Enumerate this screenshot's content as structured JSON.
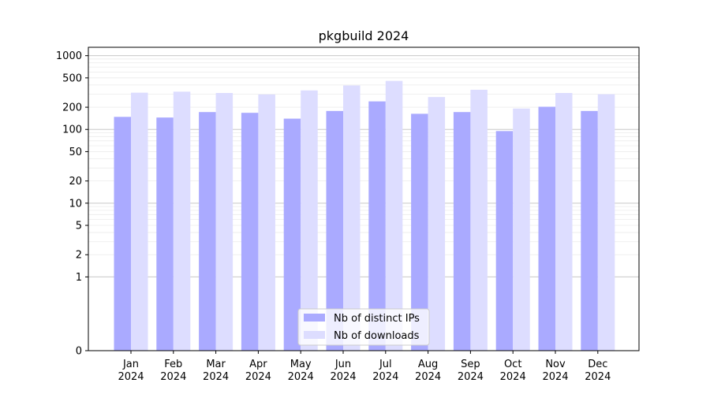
{
  "chart_data": {
    "type": "bar",
    "title": "pkgbuild 2024",
    "xlabel": "",
    "ylabel": "",
    "yscale": "symlog",
    "ylim": [
      0,
      1300
    ],
    "y_ticks": [
      0,
      1,
      2,
      5,
      10,
      20,
      50,
      100,
      200,
      500,
      1000
    ],
    "y_tick_labels": [
      "0",
      "1",
      "2",
      "5",
      "10",
      "20",
      "50",
      "100",
      "200",
      "500",
      "1000"
    ],
    "grid": true,
    "legend_position": "lower-center",
    "categories": [
      {
        "month": "Jan",
        "year": "2024"
      },
      {
        "month": "Feb",
        "year": "2024"
      },
      {
        "month": "Mar",
        "year": "2024"
      },
      {
        "month": "Apr",
        "year": "2024"
      },
      {
        "month": "May",
        "year": "2024"
      },
      {
        "month": "Jun",
        "year": "2024"
      },
      {
        "month": "Jul",
        "year": "2024"
      },
      {
        "month": "Aug",
        "year": "2024"
      },
      {
        "month": "Sep",
        "year": "2024"
      },
      {
        "month": "Oct",
        "year": "2024"
      },
      {
        "month": "Nov",
        "year": "2024"
      },
      {
        "month": "Dec",
        "year": "2024"
      }
    ],
    "series": [
      {
        "name": "Nb of distinct IPs",
        "color": "#aaaaff",
        "values": [
          148,
          145,
          172,
          168,
          140,
          178,
          240,
          163,
          172,
          95,
          203,
          178
        ]
      },
      {
        "name": "Nb of downloads",
        "color": "#ddddff",
        "values": [
          315,
          325,
          312,
          298,
          338,
          395,
          455,
          275,
          345,
          192,
          312,
          300
        ]
      }
    ]
  }
}
